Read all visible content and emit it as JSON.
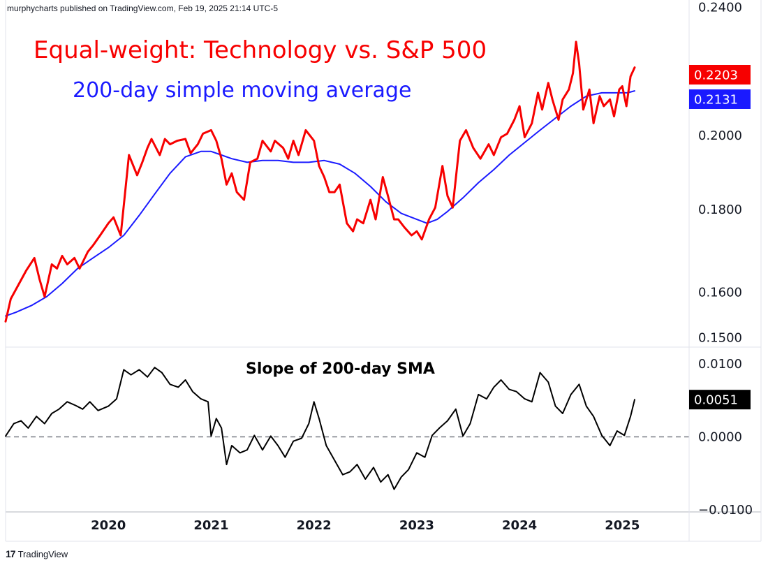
{
  "header": {
    "attribution": "murphycharts published on TradingView.com, Feb 19, 2025 21:14 UTC-5"
  },
  "footer": {
    "brand": "TradingView",
    "logo_glyph": "17"
  },
  "colors": {
    "ratio": "#f70000",
    "sma": "#1a1aff",
    "slope": "#000000",
    "grid": "#e0e3eb",
    "zero_line": "#787b86"
  },
  "chart_data": [
    {
      "type": "line",
      "title": "Equal-weight: Technology vs. S&P 500",
      "subtitle": "200-day simple moving average",
      "y_scale": "log",
      "ylim": [
        0.148,
        0.2425
      ],
      "xlim": [
        2019.0,
        2025.65
      ],
      "x_ticks": [
        2020,
        2021,
        2022,
        2023,
        2024,
        2025
      ],
      "x_tick_labels": [
        "2020",
        "2021",
        "2022",
        "2023",
        "2024",
        "2025"
      ],
      "y_ticks": [
        0.24,
        0.2,
        0.18,
        0.16,
        0.15
      ],
      "y_tick_labels": [
        "0.2400",
        "0.2000",
        "0.1800",
        "0.1600",
        "0.1500"
      ],
      "last_values": [
        {
          "label": "0.2203",
          "color": "#f70000",
          "value": 0.2203
        },
        {
          "label": "0.2131",
          "color": "#1a1aff",
          "value": 0.2131
        }
      ],
      "series": [
        {
          "role": "ratio",
          "color": "#f70000",
          "x": [
            2019.0,
            2019.05,
            2019.12,
            2019.2,
            2019.28,
            2019.33,
            2019.38,
            2019.45,
            2019.5,
            2019.55,
            2019.6,
            2019.67,
            2019.72,
            2019.8,
            2019.85,
            2019.92,
            2020.0,
            2020.05,
            2020.12,
            2020.2,
            2020.28,
            2020.33,
            2020.38,
            2020.42,
            2020.5,
            2020.55,
            2020.6,
            2020.67,
            2020.75,
            2020.8,
            2020.87,
            2020.92,
            2021.0,
            2021.05,
            2021.1,
            2021.15,
            2021.2,
            2021.25,
            2021.32,
            2021.38,
            2021.45,
            2021.5,
            2021.58,
            2021.62,
            2021.7,
            2021.75,
            2021.8,
            2021.85,
            2021.92,
            2022.0,
            2022.05,
            2022.1,
            2022.15,
            2022.2,
            2022.25,
            2022.32,
            2022.38,
            2022.42,
            2022.48,
            2022.55,
            2022.6,
            2022.67,
            2022.72,
            2022.78,
            2022.82,
            2022.88,
            2022.95,
            2023.0,
            2023.05,
            2023.12,
            2023.18,
            2023.25,
            2023.3,
            2023.35,
            2023.42,
            2023.48,
            2023.55,
            2023.62,
            2023.7,
            2023.75,
            2023.82,
            2023.88,
            2023.95,
            2024.0,
            2024.05,
            2024.12,
            2024.18,
            2024.22,
            2024.28,
            2024.32,
            2024.38,
            2024.42,
            2024.48,
            2024.52,
            2024.55,
            2024.58,
            2024.62,
            2024.68,
            2024.72,
            2024.78,
            2024.82,
            2024.88,
            2024.92,
            2024.97,
            2025.0,
            2025.04,
            2025.08,
            2025.12
          ],
          "values": [
            0.1535,
            0.1585,
            0.1615,
            0.165,
            0.168,
            0.163,
            0.159,
            0.1665,
            0.1655,
            0.1685,
            0.1665,
            0.168,
            0.1655,
            0.1695,
            0.171,
            0.1735,
            0.1765,
            0.178,
            0.1735,
            0.1945,
            0.189,
            0.1925,
            0.1965,
            0.199,
            0.1945,
            0.199,
            0.1975,
            0.1985,
            0.199,
            0.195,
            0.1975,
            0.2005,
            0.2015,
            0.1985,
            0.1935,
            0.1865,
            0.1895,
            0.1845,
            0.1825,
            0.1925,
            0.1935,
            0.1985,
            0.1955,
            0.1985,
            0.1965,
            0.1935,
            0.1985,
            0.1945,
            0.2015,
            0.1985,
            0.1915,
            0.1885,
            0.1845,
            0.1845,
            0.1865,
            0.1765,
            0.1745,
            0.1775,
            0.1765,
            0.1825,
            0.1775,
            0.1885,
            0.1835,
            0.1775,
            0.1775,
            0.1755,
            0.1735,
            0.1745,
            0.1725,
            0.1775,
            0.1805,
            0.1915,
            0.1835,
            0.1805,
            0.1985,
            0.2015,
            0.1965,
            0.1935,
            0.1975,
            0.1945,
            0.1995,
            0.2005,
            0.2045,
            0.2085,
            0.1995,
            0.2035,
            0.2125,
            0.2075,
            0.2155,
            0.2105,
            0.2045,
            0.2105,
            0.2135,
            0.2185,
            0.2285,
            0.2215,
            0.2075,
            0.2135,
            0.2035,
            0.2115,
            0.2085,
            0.2105,
            0.2055,
            0.2135,
            0.2145,
            0.2085,
            0.2175,
            0.2203
          ]
        },
        {
          "role": "sma",
          "color": "#1a1aff",
          "x": [
            2019.0,
            2019.1,
            2019.25,
            2019.4,
            2019.55,
            2019.7,
            2019.85,
            2020.0,
            2020.15,
            2020.3,
            2020.45,
            2020.6,
            2020.75,
            2020.9,
            2021.0,
            2021.1,
            2021.2,
            2021.35,
            2021.5,
            2021.65,
            2021.8,
            2021.95,
            2022.1,
            2022.25,
            2022.4,
            2022.55,
            2022.7,
            2022.85,
            2023.0,
            2023.1,
            2023.2,
            2023.3,
            2023.45,
            2023.6,
            2023.75,
            2023.9,
            2024.05,
            2024.2,
            2024.35,
            2024.5,
            2024.65,
            2024.8,
            2024.95,
            2025.05,
            2025.12
          ],
          "values": [
            0.1547,
            0.1555,
            0.157,
            0.159,
            0.162,
            0.1655,
            0.168,
            0.1705,
            0.1735,
            0.1785,
            0.184,
            0.1895,
            0.194,
            0.1955,
            0.1955,
            0.1945,
            0.1935,
            0.1925,
            0.193,
            0.193,
            0.1925,
            0.1925,
            0.193,
            0.192,
            0.1895,
            0.186,
            0.182,
            0.179,
            0.1775,
            0.1765,
            0.1775,
            0.1795,
            0.183,
            0.187,
            0.1905,
            0.1945,
            0.198,
            0.2015,
            0.205,
            0.2085,
            0.2115,
            0.2125,
            0.2125,
            0.2125,
            0.2131
          ]
        }
      ]
    },
    {
      "type": "line",
      "title": "Slope of 200-day SMA",
      "ylim": [
        -0.0103,
        0.0123
      ],
      "xlim": [
        2019.0,
        2025.65
      ],
      "y_ticks": [
        0.01,
        0.0,
        -0.01
      ],
      "y_tick_labels": [
        "0.0100",
        "0.0000",
        "−0.0100"
      ],
      "zero_line": 0.0,
      "last_values": [
        {
          "label": "0.0051",
          "color": "#000000",
          "value": 0.0051
        }
      ],
      "series": [
        {
          "role": "slope",
          "color": "#000000",
          "x": [
            2019.0,
            2019.08,
            2019.15,
            2019.22,
            2019.3,
            2019.38,
            2019.45,
            2019.52,
            2019.6,
            2019.68,
            2019.75,
            2019.82,
            2019.9,
            2020.0,
            2020.08,
            2020.15,
            2020.22,
            2020.3,
            2020.38,
            2020.45,
            2020.52,
            2020.6,
            2020.68,
            2020.75,
            2020.82,
            2020.9,
            2020.97,
            2021.0,
            2021.05,
            2021.1,
            2021.15,
            2021.2,
            2021.28,
            2021.35,
            2021.42,
            2021.5,
            2021.58,
            2021.65,
            2021.72,
            2021.8,
            2021.88,
            2021.95,
            2022.0,
            2022.05,
            2022.12,
            2022.2,
            2022.28,
            2022.35,
            2022.42,
            2022.5,
            2022.58,
            2022.65,
            2022.72,
            2022.78,
            2022.85,
            2022.92,
            2023.0,
            2023.08,
            2023.15,
            2023.22,
            2023.3,
            2023.38,
            2023.45,
            2023.52,
            2023.6,
            2023.68,
            2023.75,
            2023.82,
            2023.9,
            2023.97,
            2024.05,
            2024.12,
            2024.2,
            2024.28,
            2024.35,
            2024.42,
            2024.5,
            2024.58,
            2024.65,
            2024.72,
            2024.8,
            2024.88,
            2024.95,
            2025.02,
            2025.08,
            2025.12
          ],
          "values": [
            0.0001,
            0.0018,
            0.0022,
            0.0012,
            0.0028,
            0.0018,
            0.0032,
            0.0038,
            0.0048,
            0.0043,
            0.0038,
            0.0048,
            0.0036,
            0.0042,
            0.0052,
            0.0092,
            0.0085,
            0.0092,
            0.0082,
            0.0095,
            0.0088,
            0.0072,
            0.0068,
            0.0078,
            0.0062,
            0.0052,
            0.0048,
            0.0001,
            0.0025,
            0.0012,
            -0.0038,
            -0.0012,
            -0.0022,
            -0.0018,
            0.0002,
            -0.0018,
            0.0001,
            -0.0012,
            -0.0028,
            -0.0006,
            -0.0002,
            0.0018,
            0.0048,
            0.0025,
            -0.0012,
            -0.0032,
            -0.0052,
            -0.0048,
            -0.0038,
            -0.0058,
            -0.0042,
            -0.0062,
            -0.0052,
            -0.0072,
            -0.0055,
            -0.0045,
            -0.0022,
            -0.0028,
            0.0002,
            0.0012,
            0.0022,
            0.0038,
            0.0001,
            0.0018,
            0.0058,
            0.0052,
            0.0068,
            0.0078,
            0.0065,
            0.0062,
            0.0052,
            0.0048,
            0.0088,
            0.0075,
            0.0042,
            0.0032,
            0.0058,
            0.0072,
            0.0042,
            0.0028,
            0.0002,
            -0.0012,
            0.0008,
            0.0002,
            0.0028,
            0.0051
          ]
        }
      ]
    }
  ],
  "x_axis_labels": [
    "2020",
    "2021",
    "2022",
    "2023",
    "2024",
    "2025"
  ]
}
